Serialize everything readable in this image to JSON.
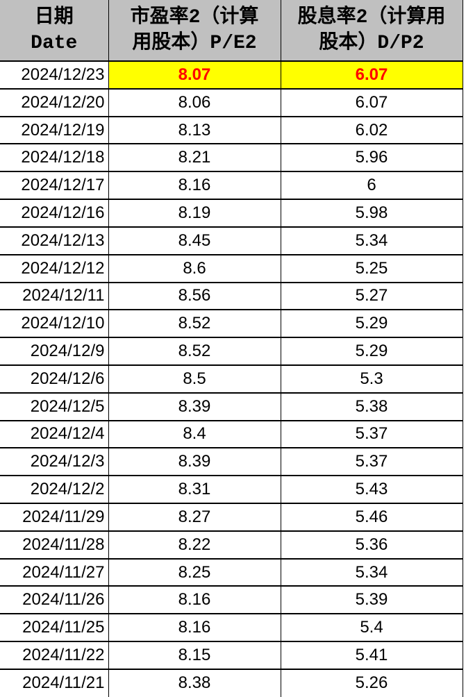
{
  "chart_data": {
    "type": "table",
    "columns": [
      "日期 Date",
      "市盈率2（计算用股本）P/E2",
      "股息率2（计算用股本）D/P2"
    ],
    "header_lines": [
      [
        "日期",
        "Date"
      ],
      [
        "市盈率2（计算",
        "用股本）P/E2"
      ],
      [
        "股息率2（计算用",
        "股本）D/P2"
      ]
    ],
    "rows": [
      [
        "2024/12/23",
        "8.07",
        "6.07"
      ],
      [
        "2024/12/20",
        "8.06",
        "6.07"
      ],
      [
        "2024/12/19",
        "8.13",
        "6.02"
      ],
      [
        "2024/12/18",
        "8.21",
        "5.96"
      ],
      [
        "2024/12/17",
        "8.16",
        "6"
      ],
      [
        "2024/12/16",
        "8.19",
        "5.98"
      ],
      [
        "2024/12/13",
        "8.45",
        "5.34"
      ],
      [
        "2024/12/12",
        "8.6",
        "5.25"
      ],
      [
        "2024/12/11",
        "8.56",
        "5.27"
      ],
      [
        "2024/12/10",
        "8.52",
        "5.29"
      ],
      [
        "2024/12/9",
        "8.52",
        "5.29"
      ],
      [
        "2024/12/6",
        "8.5",
        "5.3"
      ],
      [
        "2024/12/5",
        "8.39",
        "5.38"
      ],
      [
        "2024/12/4",
        "8.4",
        "5.37"
      ],
      [
        "2024/12/3",
        "8.39",
        "5.37"
      ],
      [
        "2024/12/2",
        "8.31",
        "5.43"
      ],
      [
        "2024/11/29",
        "8.27",
        "5.46"
      ],
      [
        "2024/11/28",
        "8.22",
        "5.36"
      ],
      [
        "2024/11/27",
        "8.25",
        "5.34"
      ],
      [
        "2024/11/26",
        "8.16",
        "5.39"
      ],
      [
        "2024/11/25",
        "8.16",
        "5.4"
      ],
      [
        "2024/11/22",
        "8.15",
        "5.41"
      ],
      [
        "2024/11/21",
        "8.38",
        "5.26"
      ]
    ],
    "highlighted_row": 0
  },
  "colors": {
    "header_bg": "#c0c0c0",
    "highlight_bg": "#ffff00",
    "highlight_text": "#ff0000",
    "grid": "#000000",
    "text": "#000000",
    "row_bg": "#ffffff"
  }
}
